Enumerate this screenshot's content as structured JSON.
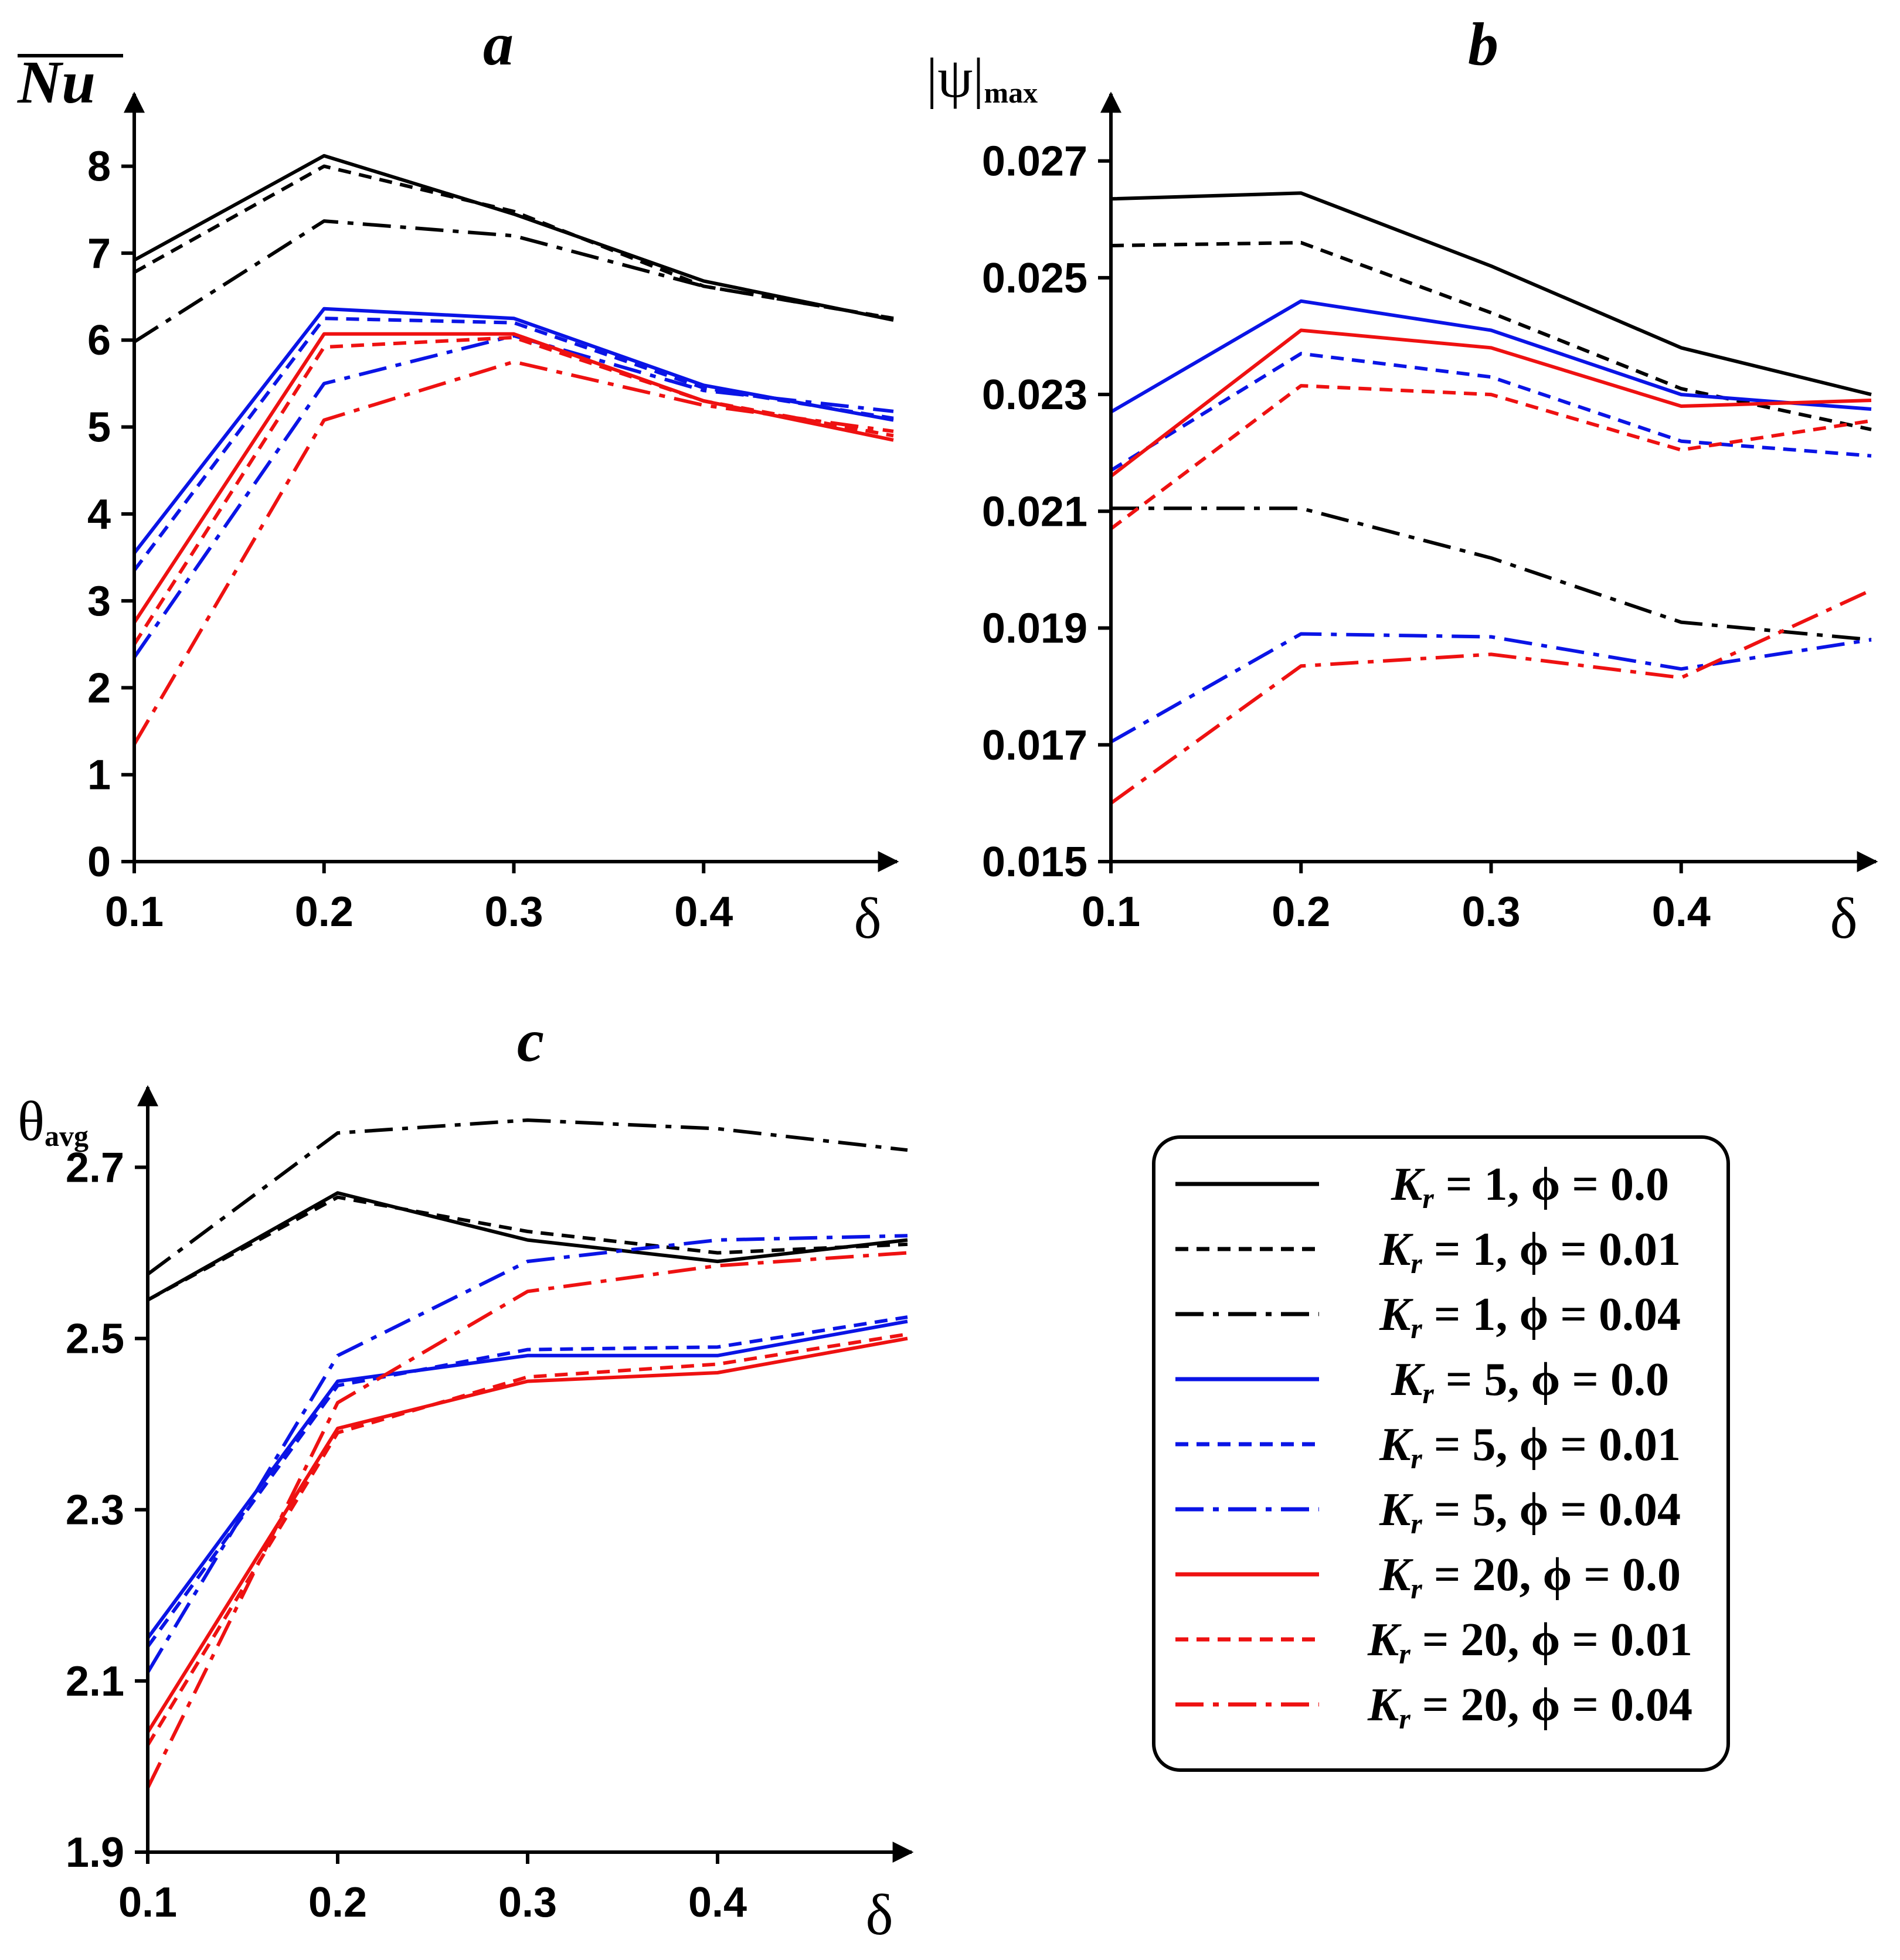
{
  "chart_data": [
    {
      "id": "a",
      "type": "line",
      "title": "a",
      "ylabel": "Nu",
      "xlabel": "δ",
      "x": [
        0.1,
        0.2,
        0.3,
        0.4,
        0.5
      ],
      "xticks": [
        "0.1",
        "0.2",
        "0.3",
        "0.4"
      ],
      "ylim": [
        0,
        8.8
      ],
      "yticks": [
        "0",
        "1",
        "2",
        "3",
        "4",
        "5",
        "6",
        "7",
        "8"
      ],
      "series": [
        {
          "name": "Kr = 1, φ = 0.0",
          "values": [
            6.92,
            8.12,
            7.45,
            6.68,
            6.23
          ]
        },
        {
          "name": "Kr = 1, φ = 0.01",
          "values": [
            6.78,
            8.0,
            7.48,
            6.62,
            6.25
          ]
        },
        {
          "name": "Kr = 1, φ = 0.04",
          "values": [
            5.98,
            7.37,
            7.2,
            6.62,
            6.25
          ]
        },
        {
          "name": "Kr = 5, φ = 0.0",
          "values": [
            3.55,
            6.36,
            6.25,
            5.48,
            5.08
          ]
        },
        {
          "name": "Kr = 5, φ = 0.01",
          "values": [
            3.35,
            6.25,
            6.2,
            5.45,
            5.1
          ]
        },
        {
          "name": "Kr = 5, φ = 0.04",
          "values": [
            2.35,
            5.5,
            6.05,
            5.42,
            5.18
          ]
        },
        {
          "name": "Kr = 20, φ = 0.0",
          "values": [
            2.75,
            6.07,
            6.07,
            5.3,
            4.85
          ]
        },
        {
          "name": "Kr = 20, φ = 0.01",
          "values": [
            2.5,
            5.92,
            6.03,
            5.3,
            4.9
          ]
        },
        {
          "name": "Kr = 20, φ = 0.04",
          "values": [
            1.35,
            5.08,
            5.75,
            5.25,
            4.95
          ]
        }
      ]
    },
    {
      "id": "b",
      "type": "line",
      "title": "b",
      "ylabel": "|ψ|",
      "ylabel_sub": "max",
      "xlabel": "δ",
      "x": [
        0.1,
        0.2,
        0.3,
        0.4,
        0.5
      ],
      "xticks": [
        "0.1",
        "0.2",
        "0.3",
        "0.4"
      ],
      "ylim": [
        0.015,
        0.0281
      ],
      "yticks": [
        "0.015",
        "0.017",
        "0.019",
        "0.021",
        "0.023",
        "0.025",
        "0.027"
      ],
      "series": [
        {
          "name": "Kr = 1, φ = 0.0",
          "values": [
            0.02635,
            0.02645,
            0.0252,
            0.0238,
            0.023
          ]
        },
        {
          "name": "Kr = 1, φ = 0.01",
          "values": [
            0.02555,
            0.0256,
            0.0244,
            0.0231,
            0.0224
          ]
        },
        {
          "name": "Kr = 1, φ = 0.04",
          "values": [
            0.02105,
            0.02105,
            0.0202,
            0.0191,
            0.0188
          ]
        },
        {
          "name": "Kr = 5, φ = 0.0",
          "values": [
            0.0227,
            0.0246,
            0.0241,
            0.023,
            0.02275
          ]
        },
        {
          "name": "Kr = 5, φ = 0.01",
          "values": [
            0.0217,
            0.0237,
            0.0233,
            0.0222,
            0.02195
          ]
        },
        {
          "name": "Kr = 5, φ = 0.04",
          "values": [
            0.01705,
            0.0189,
            0.01885,
            0.0183,
            0.0188
          ]
        },
        {
          "name": "Kr = 20, φ = 0.0",
          "values": [
            0.0216,
            0.0241,
            0.0238,
            0.0228,
            0.0229
          ]
        },
        {
          "name": "Kr = 20, φ = 0.01",
          "values": [
            0.0207,
            0.02315,
            0.023,
            0.02205,
            0.02255
          ]
        },
        {
          "name": "Kr = 20, φ = 0.04",
          "values": [
            0.016,
            0.01835,
            0.01855,
            0.01815,
            0.01965
          ]
        }
      ]
    },
    {
      "id": "c",
      "type": "line",
      "title": "c",
      "ylabel": "θ",
      "ylabel_sub": "avg",
      "xlabel": "δ",
      "x": [
        0.1,
        0.2,
        0.3,
        0.4,
        0.5
      ],
      "xticks": [
        "0.1",
        "0.2",
        "0.3",
        "0.4"
      ],
      "ylim": [
        1.9,
        2.79
      ],
      "yticks": [
        "1.9",
        "2.1",
        "2.3",
        "2.5",
        "2.7"
      ],
      "series": [
        {
          "name": "Kr = 1, φ = 0.0",
          "values": [
            2.545,
            2.67,
            2.615,
            2.59,
            2.615
          ]
        },
        {
          "name": "Kr = 1, φ = 0.01",
          "values": [
            2.545,
            2.665,
            2.625,
            2.6,
            2.61
          ]
        },
        {
          "name": "Kr = 1, φ = 0.04",
          "values": [
            2.575,
            2.74,
            2.755,
            2.745,
            2.72
          ]
        },
        {
          "name": "Kr = 5, φ = 0.0",
          "values": [
            2.15,
            2.45,
            2.48,
            2.48,
            2.52
          ]
        },
        {
          "name": "Kr = 5, φ = 0.01",
          "values": [
            2.14,
            2.445,
            2.487,
            2.49,
            2.525
          ]
        },
        {
          "name": "Kr = 5, φ = 0.04",
          "values": [
            2.11,
            2.48,
            2.59,
            2.615,
            2.62
          ]
        },
        {
          "name": "Kr = 20, φ = 0.0",
          "values": [
            2.04,
            2.395,
            2.45,
            2.46,
            2.5
          ]
        },
        {
          "name": "Kr = 20, φ = 0.01",
          "values": [
            2.025,
            2.39,
            2.455,
            2.47,
            2.505
          ]
        },
        {
          "name": "Kr = 20, φ = 0.04",
          "values": [
            1.975,
            2.425,
            2.555,
            2.585,
            2.6
          ]
        }
      ]
    }
  ],
  "legend": {
    "position": "bottom-right",
    "items": [
      {
        "k": "K",
        "ksub": "r",
        "text": " = 1, ϕ = 0.0",
        "color": "#000000",
        "style": "solid"
      },
      {
        "k": "K",
        "ksub": "r",
        "text": " = 1, ϕ = 0.01",
        "color": "#000000",
        "style": "dashed"
      },
      {
        "k": "K",
        "ksub": "r",
        "text": " = 1, ϕ = 0.04",
        "color": "#000000",
        "style": "dashdot"
      },
      {
        "k": "K",
        "ksub": "r",
        "text": " = 5, ϕ = 0.0",
        "color": "#0a14e6",
        "style": "solid"
      },
      {
        "k": "K",
        "ksub": "r",
        "text": " = 5, ϕ = 0.01",
        "color": "#0a14e6",
        "style": "dashed"
      },
      {
        "k": "K",
        "ksub": "r",
        "text": " = 5, ϕ = 0.04",
        "color": "#0a14e6",
        "style": "dashdot"
      },
      {
        "k": "K",
        "ksub": "r",
        "text": " = 20, ϕ = 0.0",
        "color": "#ee1111",
        "style": "solid"
      },
      {
        "k": "K",
        "ksub": "r",
        "text": " = 20, ϕ = 0.01",
        "color": "#ee1111",
        "style": "dashed"
      },
      {
        "k": "K",
        "ksub": "r",
        "text": " = 20, ϕ = 0.04",
        "color": "#ee1111",
        "style": "dashdot"
      }
    ]
  }
}
